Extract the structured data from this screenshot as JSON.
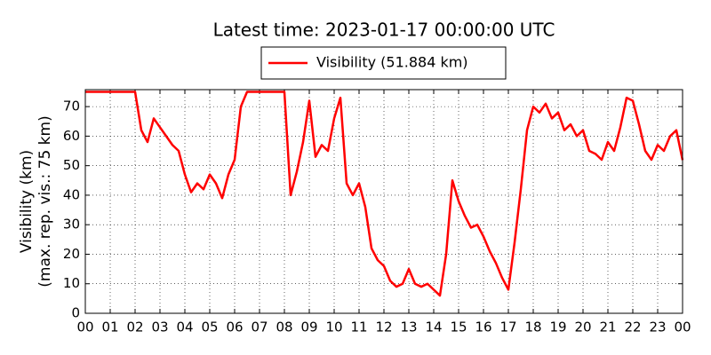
{
  "chart_data": {
    "type": "line",
    "title": "Latest time: 2023-01-17 00:00:00 UTC",
    "ylabel": [
      "Visibility (km)",
      "(max. rep. vis.: 75 km)"
    ],
    "legend": "Visibility (51.884 km)",
    "grid": true,
    "x": [
      0,
      0.25,
      0.5,
      0.75,
      1,
      1.25,
      1.5,
      1.75,
      2,
      2.25,
      2.5,
      2.75,
      3,
      3.25,
      3.5,
      3.75,
      4,
      4.25,
      4.5,
      4.75,
      5,
      5.25,
      5.5,
      5.75,
      6,
      6.25,
      6.5,
      6.75,
      7,
      7.25,
      7.5,
      7.75,
      8,
      8.25,
      8.5,
      8.75,
      9,
      9.25,
      9.5,
      9.75,
      10,
      10.25,
      10.5,
      10.75,
      11,
      11.25,
      11.5,
      11.75,
      12,
      12.25,
      12.5,
      12.75,
      13,
      13.25,
      13.5,
      13.75,
      14,
      14.25,
      14.5,
      14.75,
      15,
      15.25,
      15.5,
      15.75,
      16,
      16.25,
      16.5,
      16.75,
      17,
      17.25,
      17.5,
      17.75,
      18,
      18.25,
      18.5,
      18.75,
      19,
      19.25,
      19.5,
      19.75,
      20,
      20.25,
      20.5,
      20.75,
      21,
      21.25,
      21.5,
      21.75,
      22,
      22.25,
      22.5,
      22.75,
      23,
      23.25,
      23.5,
      23.75,
      24
    ],
    "series": [
      {
        "name": "Visibility",
        "color": "#ff0000",
        "values": [
          75,
          75,
          75,
          75,
          75,
          75,
          75,
          75,
          75,
          62,
          58,
          66,
          63,
          60,
          57,
          55,
          47,
          41,
          44,
          42,
          47,
          44,
          39,
          47,
          52,
          70,
          75,
          75,
          75,
          75,
          75,
          75,
          75,
          40,
          48,
          58,
          72,
          53,
          57,
          55,
          66,
          73,
          44,
          40,
          44,
          36,
          22,
          18,
          16,
          11,
          9,
          10,
          15,
          10,
          9,
          10,
          8,
          6,
          20,
          45,
          38,
          33,
          29,
          30,
          26,
          21,
          17,
          12,
          8,
          24,
          42,
          62,
          70,
          68,
          71,
          66,
          68,
          62,
          64,
          60,
          62,
          55,
          54,
          52,
          58,
          55,
          63,
          73,
          72,
          64,
          55,
          52,
          57,
          55,
          60,
          62,
          51.884
        ]
      }
    ],
    "xlim": [
      0,
      24
    ],
    "xticks": [
      {
        "value": 0,
        "label": "00"
      },
      {
        "value": 1,
        "label": "01"
      },
      {
        "value": 2,
        "label": "02"
      },
      {
        "value": 3,
        "label": "03"
      },
      {
        "value": 4,
        "label": "04"
      },
      {
        "value": 5,
        "label": "05"
      },
      {
        "value": 6,
        "label": "06"
      },
      {
        "value": 7,
        "label": "07"
      },
      {
        "value": 8,
        "label": "08"
      },
      {
        "value": 9,
        "label": "09"
      },
      {
        "value": 10,
        "label": "10"
      },
      {
        "value": 11,
        "label": "11"
      },
      {
        "value": 12,
        "label": "12"
      },
      {
        "value": 13,
        "label": "13"
      },
      {
        "value": 14,
        "label": "14"
      },
      {
        "value": 15,
        "label": "15"
      },
      {
        "value": 16,
        "label": "16"
      },
      {
        "value": 17,
        "label": "17"
      },
      {
        "value": 18,
        "label": "18"
      },
      {
        "value": 19,
        "label": "19"
      },
      {
        "value": 20,
        "label": "20"
      },
      {
        "value": 21,
        "label": "21"
      },
      {
        "value": 22,
        "label": "22"
      },
      {
        "value": 23,
        "label": "23"
      },
      {
        "value": 24,
        "label": "00"
      }
    ],
    "ylim": [
      0,
      75.75
    ],
    "yticks": [
      0,
      10,
      20,
      30,
      40,
      50,
      60,
      70
    ]
  }
}
